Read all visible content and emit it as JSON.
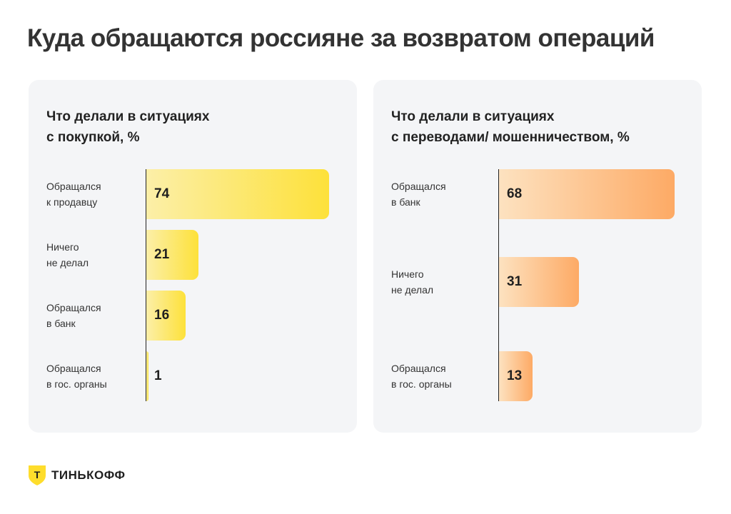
{
  "title": "Куда обращаются россияне за возвратом операций",
  "chart_data": [
    {
      "type": "bar",
      "orientation": "horizontal",
      "title_lines": [
        "Что делали в ситуациях",
        "с покупкой, %"
      ],
      "categories": [
        [
          "Обращался",
          "к продавцу"
        ],
        [
          "Ничего",
          "не делал"
        ],
        [
          "Обращался",
          "в банк"
        ],
        [
          "Обращался",
          "в гос. органы"
        ]
      ],
      "values": [
        74,
        21,
        16,
        1
      ],
      "value_labels": [
        "74",
        "21",
        "16",
        "1"
      ],
      "xlim": [
        0,
        80
      ],
      "colors": {
        "from": "#fcefa8",
        "to": "#fde13a"
      }
    },
    {
      "type": "bar",
      "orientation": "horizontal",
      "title_lines": [
        "Что делали в ситуациях",
        "с переводами/ мошенничеством, %"
      ],
      "categories": [
        [
          "Обращался",
          "в банк"
        ],
        [
          "Ничего",
          "не делал"
        ],
        [
          "Обращался",
          "в гос. органы"
        ]
      ],
      "values": [
        68,
        31,
        13
      ],
      "value_labels": [
        "68",
        "31",
        "13"
      ],
      "xlim": [
        0,
        75
      ],
      "colors": {
        "from": "#fde2c0",
        "to": "#fdaa65"
      }
    }
  ],
  "logo": {
    "text": "ТИНЬКОФФ",
    "letter": "Т"
  }
}
